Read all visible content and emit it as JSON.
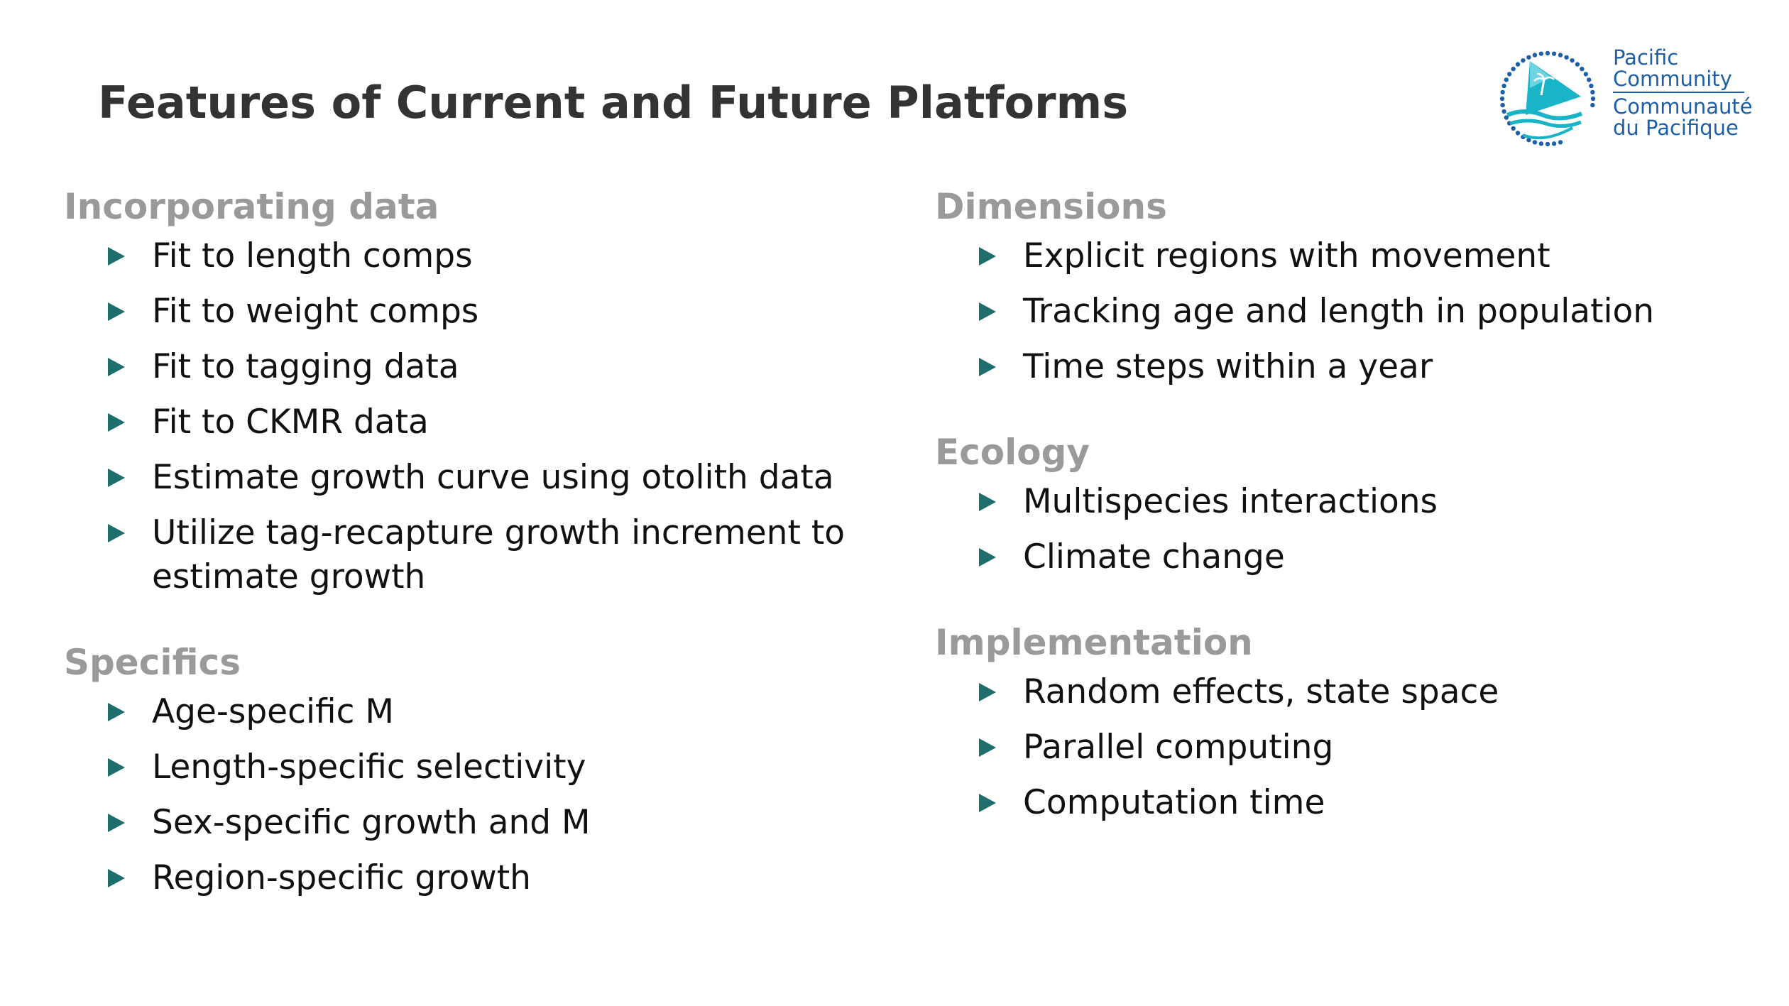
{
  "title": "Features of Current and Future Platforms",
  "logo": {
    "line1": "Pacific",
    "line2": "Community",
    "line3": "Communauté",
    "line4": "du Pacifique",
    "colors": {
      "text": "#1d5fa8",
      "teal": "#1ab4c8",
      "dots": "#1d5fa8"
    }
  },
  "colors": {
    "bullet_arrow": "#1f6e6e",
    "heading": "#9a9a9a",
    "title": "#333333"
  },
  "left_column": [
    {
      "heading": "Incorporating data",
      "items": [
        "Fit to length comps",
        "Fit to weight comps",
        "Fit to tagging data",
        "Fit to CKMR data",
        "Estimate growth curve using otolith data",
        "Utilize tag-recapture growth increment to estimate growth"
      ]
    },
    {
      "heading": "Specifics",
      "items": [
        "Age-specific M",
        "Length-specific selectivity",
        "Sex-specific growth and M",
        "Region-specific growth"
      ]
    }
  ],
  "right_column": [
    {
      "heading": "Dimensions",
      "items": [
        "Explicit regions with movement",
        "Tracking age and length in population",
        "Time steps within a year"
      ]
    },
    {
      "heading": "Ecology",
      "items": [
        "Multispecies interactions",
        "Climate change"
      ]
    },
    {
      "heading": "Implementation",
      "items": [
        "Random effects, state space",
        "Parallel computing",
        "Computation time"
      ]
    }
  ]
}
